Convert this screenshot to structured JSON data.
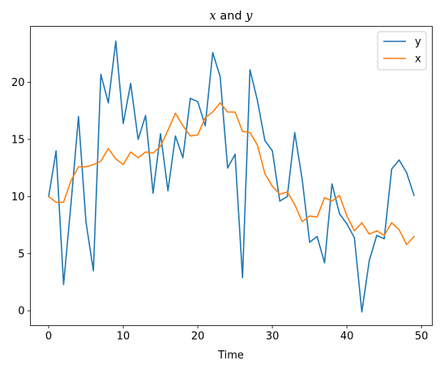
{
  "chart_data": {
    "type": "line",
    "title": {
      "pre": "",
      "var1": "x",
      "mid": " and ",
      "var2": "y"
    },
    "xlabel": "Time",
    "ylabel": "",
    "xlim": [
      -2.45,
      51.45
    ],
    "ylim": [
      -1.3,
      24.9
    ],
    "xticks": [
      0,
      10,
      20,
      30,
      40,
      50
    ],
    "yticks": [
      0,
      5,
      10,
      15,
      20
    ],
    "grid": false,
    "legend_position": "top-right",
    "x": [
      0,
      1,
      2,
      3,
      4,
      5,
      6,
      7,
      8,
      9,
      10,
      11,
      12,
      13,
      14,
      15,
      16,
      17,
      18,
      19,
      20,
      21,
      22,
      23,
      24,
      25,
      26,
      27,
      28,
      29,
      30,
      31,
      32,
      33,
      34,
      35,
      36,
      37,
      38,
      39,
      40,
      41,
      42,
      43,
      44,
      45,
      46,
      47,
      48,
      49
    ],
    "series": [
      {
        "name": "y",
        "color": "#1f77b4",
        "values": [
          10.0,
          14.0,
          2.3,
          9.4,
          17.0,
          7.8,
          3.5,
          20.7,
          18.2,
          23.6,
          16.4,
          19.9,
          15.0,
          17.1,
          10.3,
          15.5,
          10.5,
          15.3,
          13.4,
          18.6,
          18.3,
          16.2,
          22.6,
          20.5,
          12.5,
          13.7,
          2.9,
          21.1,
          18.4,
          14.9,
          14.0,
          9.6,
          10.0,
          15.6,
          11.5,
          6.0,
          6.5,
          4.2,
          11.1,
          8.5,
          7.6,
          6.4,
          -0.1,
          4.4,
          6.6,
          6.3,
          12.4,
          13.2,
          12.1,
          10.1
        ]
      },
      {
        "name": "x",
        "color": "#ff7f0e",
        "values": [
          10.0,
          9.5,
          9.5,
          11.4,
          12.6,
          12.6,
          12.8,
          13.1,
          14.2,
          13.3,
          12.8,
          13.9,
          13.4,
          13.9,
          13.8,
          14.4,
          15.8,
          17.3,
          16.2,
          15.3,
          15.4,
          16.9,
          17.4,
          18.2,
          17.4,
          17.4,
          15.7,
          15.6,
          14.5,
          12.0,
          10.9,
          10.2,
          10.4,
          9.3,
          7.8,
          8.3,
          8.2,
          9.9,
          9.6,
          10.1,
          8.3,
          7.0,
          7.7,
          6.7,
          7.0,
          6.6,
          7.7,
          7.1,
          5.8,
          6.5
        ]
      }
    ]
  }
}
